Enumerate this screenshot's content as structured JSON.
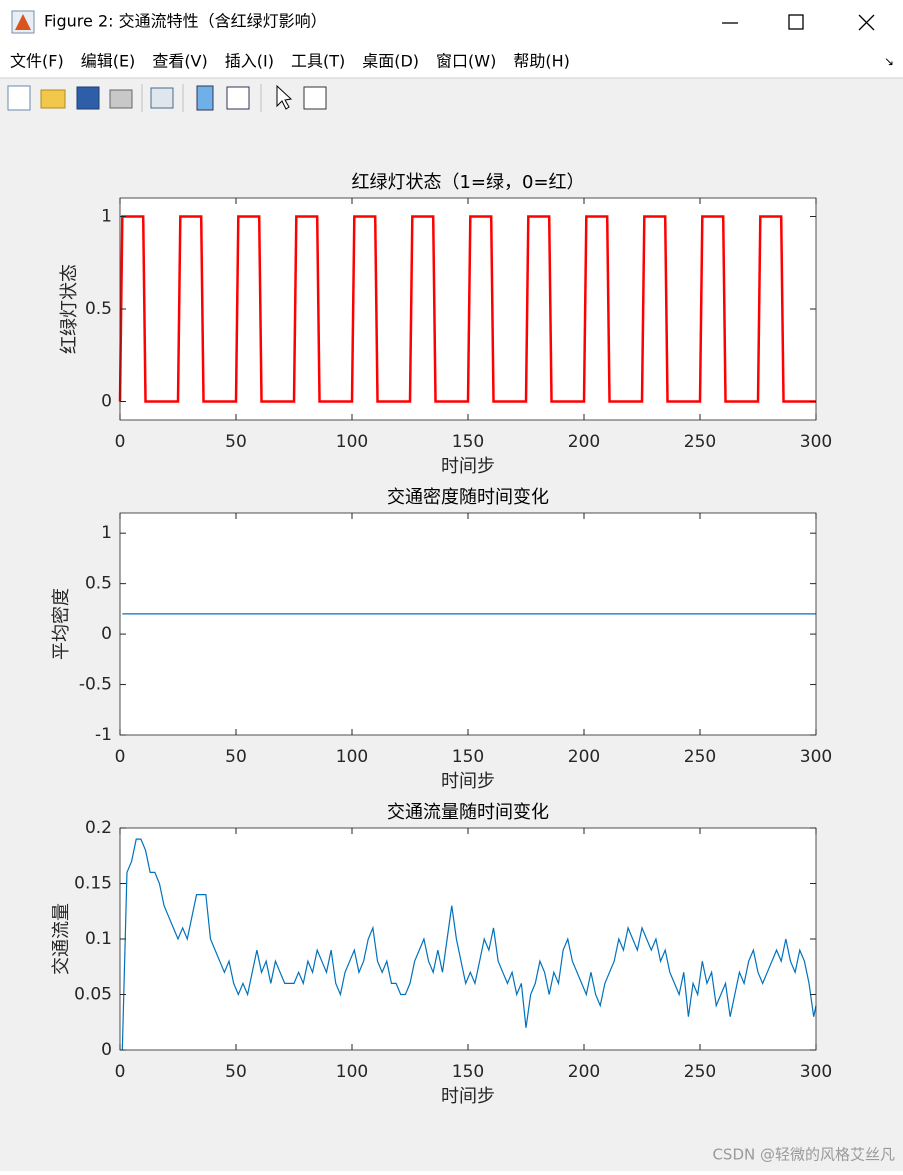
{
  "window": {
    "title": "Figure 2: 交通流特性（含红绿灯影响）",
    "menu": [
      "文件(F)",
      "编辑(E)",
      "查看(V)",
      "插入(I)",
      "工具(T)",
      "桌面(D)",
      "窗口(W)",
      "帮助(H)"
    ]
  },
  "watermark": "CSDN @轻微的风格艾丝凡",
  "chart_data": [
    {
      "type": "line",
      "title": "红绿灯状态（1=绿，0=红）",
      "xlabel": "时间步",
      "ylabel": "红绿灯状态",
      "color": "#ff0000",
      "x": [
        0,
        1,
        10,
        11,
        25,
        26,
        35,
        36,
        50,
        51,
        60,
        61,
        75,
        76,
        85,
        86,
        100,
        101,
        110,
        111,
        125,
        126,
        135,
        136,
        150,
        151,
        160,
        161,
        175,
        176,
        185,
        186,
        200,
        201,
        210,
        211,
        225,
        226,
        235,
        236,
        250,
        251,
        260,
        261,
        275,
        276,
        285,
        286,
        300
      ],
      "values": [
        0,
        1,
        1,
        0,
        0,
        1,
        1,
        0,
        0,
        1,
        1,
        0,
        0,
        1,
        1,
        0,
        0,
        1,
        1,
        0,
        0,
        1,
        1,
        0,
        0,
        1,
        1,
        0,
        0,
        1,
        1,
        0,
        0,
        1,
        1,
        0,
        0,
        1,
        1,
        0,
        0,
        1,
        1,
        0,
        0,
        1,
        1,
        0,
        0
      ],
      "xlim": [
        0,
        300
      ],
      "xticks": [
        0,
        50,
        100,
        150,
        200,
        250,
        300
      ],
      "ylim": [
        -0.1,
        1.1
      ],
      "yticks": [
        0,
        0.5,
        1
      ]
    },
    {
      "type": "line",
      "title": "交通密度随时间变化",
      "xlabel": "时间步",
      "ylabel": "平均密度",
      "color": "#0072bd",
      "x": [
        1,
        300
      ],
      "values": [
        0.2,
        0.2
      ],
      "xlim": [
        0,
        300
      ],
      "xticks": [
        0,
        50,
        100,
        150,
        200,
        250,
        300
      ],
      "ylim": [
        -1,
        1.2
      ],
      "yticks": [
        -1,
        -0.5,
        0,
        0.5,
        1
      ]
    },
    {
      "type": "line",
      "title": "交通流量随时间变化",
      "xlabel": "时间步",
      "ylabel": "交通流量",
      "color": "#0072bd",
      "x": [
        1,
        3,
        5,
        7,
        9,
        11,
        13,
        15,
        17,
        19,
        21,
        23,
        25,
        27,
        29,
        31,
        33,
        35,
        37,
        39,
        41,
        43,
        45,
        47,
        49,
        51,
        53,
        55,
        57,
        59,
        61,
        63,
        65,
        67,
        69,
        71,
        73,
        75,
        77,
        79,
        81,
        83,
        85,
        87,
        89,
        91,
        93,
        95,
        97,
        99,
        101,
        103,
        105,
        107,
        109,
        111,
        113,
        115,
        117,
        119,
        121,
        123,
        125,
        127,
        129,
        131,
        133,
        135,
        137,
        139,
        141,
        143,
        145,
        147,
        149,
        151,
        153,
        155,
        157,
        159,
        161,
        163,
        165,
        167,
        169,
        171,
        173,
        175,
        177,
        179,
        181,
        183,
        185,
        187,
        189,
        191,
        193,
        195,
        197,
        199,
        201,
        203,
        205,
        207,
        209,
        211,
        213,
        215,
        217,
        219,
        221,
        223,
        225,
        227,
        229,
        231,
        233,
        235,
        237,
        239,
        241,
        243,
        245,
        247,
        249,
        251,
        253,
        255,
        257,
        259,
        261,
        263,
        265,
        267,
        269,
        271,
        273,
        275,
        277,
        279,
        281,
        283,
        285,
        287,
        289,
        291,
        293,
        295,
        297,
        299,
        300
      ],
      "values": [
        0,
        0.16,
        0.17,
        0.19,
        0.19,
        0.18,
        0.16,
        0.16,
        0.15,
        0.13,
        0.12,
        0.11,
        0.1,
        0.11,
        0.1,
        0.12,
        0.14,
        0.14,
        0.14,
        0.1,
        0.09,
        0.08,
        0.07,
        0.08,
        0.06,
        0.05,
        0.06,
        0.05,
        0.07,
        0.09,
        0.07,
        0.08,
        0.06,
        0.08,
        0.07,
        0.06,
        0.06,
        0.06,
        0.07,
        0.06,
        0.08,
        0.07,
        0.09,
        0.08,
        0.07,
        0.09,
        0.06,
        0.05,
        0.07,
        0.08,
        0.09,
        0.07,
        0.08,
        0.1,
        0.11,
        0.08,
        0.07,
        0.08,
        0.06,
        0.06,
        0.05,
        0.05,
        0.06,
        0.08,
        0.09,
        0.1,
        0.08,
        0.07,
        0.09,
        0.07,
        0.1,
        0.13,
        0.1,
        0.08,
        0.06,
        0.07,
        0.06,
        0.08,
        0.1,
        0.09,
        0.11,
        0.08,
        0.07,
        0.06,
        0.07,
        0.05,
        0.06,
        0.02,
        0.05,
        0.06,
        0.08,
        0.07,
        0.05,
        0.07,
        0.06,
        0.09,
        0.1,
        0.08,
        0.07,
        0.06,
        0.05,
        0.07,
        0.05,
        0.04,
        0.06,
        0.07,
        0.08,
        0.1,
        0.09,
        0.11,
        0.1,
        0.09,
        0.11,
        0.1,
        0.09,
        0.1,
        0.08,
        0.09,
        0.07,
        0.06,
        0.05,
        0.07,
        0.03,
        0.06,
        0.05,
        0.08,
        0.06,
        0.07,
        0.04,
        0.05,
        0.06,
        0.03,
        0.05,
        0.07,
        0.06,
        0.08,
        0.09,
        0.07,
        0.06,
        0.07,
        0.08,
        0.09,
        0.08,
        0.1,
        0.08,
        0.07,
        0.09,
        0.08,
        0.06,
        0.03,
        0.04
      ],
      "xlim": [
        0,
        300
      ],
      "xticks": [
        0,
        50,
        100,
        150,
        200,
        250,
        300
      ],
      "ylim": [
        0,
        0.2
      ],
      "yticks": [
        0,
        0.05,
        0.1,
        0.15,
        0.2
      ]
    }
  ]
}
